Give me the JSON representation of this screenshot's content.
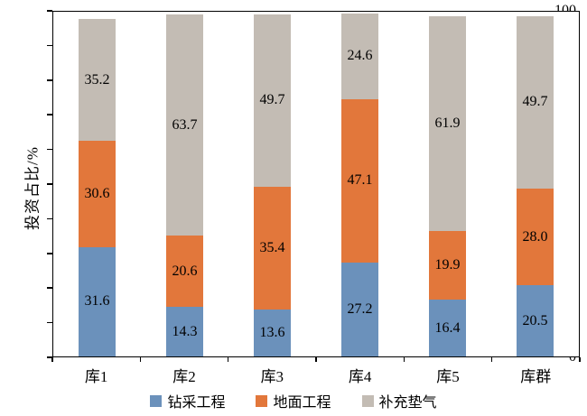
{
  "chart_data": {
    "type": "bar",
    "stacked": true,
    "title": "",
    "xlabel": "",
    "ylabel": "投资占比/%",
    "ylim": [
      0,
      100
    ],
    "ytick_step": 10,
    "grid": false,
    "legend_position": "bottom",
    "categories": [
      "库1",
      "库2",
      "库3",
      "库4",
      "库5",
      "库群"
    ],
    "series": [
      {
        "name": "钻采工程",
        "color": "#6b91bb",
        "values": [
          31.6,
          14.3,
          13.6,
          27.2,
          16.4,
          20.5
        ]
      },
      {
        "name": "地面工程",
        "color": "#e2773b",
        "values": [
          30.6,
          20.6,
          35.4,
          47.1,
          19.9,
          28.0
        ]
      },
      {
        "name": "补充垫气",
        "color": "#c3bcb4",
        "values": [
          35.2,
          63.7,
          49.7,
          24.6,
          61.9,
          49.7
        ]
      }
    ]
  }
}
